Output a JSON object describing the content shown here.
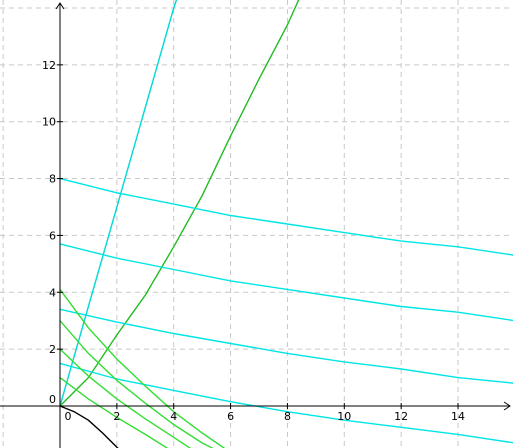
{
  "chart_data": {
    "type": "line",
    "title": "",
    "xlabel": "",
    "ylabel": "",
    "xlim": [
      -2,
      16
    ],
    "ylim": [
      -1.5,
      14.2
    ],
    "grid": true,
    "x_ticks": [
      {
        "value": 0,
        "label": "0"
      },
      {
        "value": 2,
        "label": "2"
      },
      {
        "value": 4,
        "label": "4"
      },
      {
        "value": 6,
        "label": "6"
      },
      {
        "value": 8,
        "label": "8"
      },
      {
        "value": 10,
        "label": "10"
      },
      {
        "value": 12,
        "label": "12"
      },
      {
        "value": 14,
        "label": "14"
      }
    ],
    "y_ticks": [
      {
        "value": 0,
        "label": "0"
      },
      {
        "value": 2,
        "label": "2"
      },
      {
        "value": 4,
        "label": "4"
      },
      {
        "value": 6,
        "label": "6"
      },
      {
        "value": 8,
        "label": "8"
      },
      {
        "value": 10,
        "label": "10"
      },
      {
        "value": 12,
        "label": "12"
      }
    ],
    "series": [
      {
        "color": "#00d8d8",
        "points": [
          [
            0,
            0
          ],
          [
            1,
            3.5
          ],
          [
            2,
            7.0
          ],
          [
            3,
            10.5
          ],
          [
            3.4,
            11.9
          ],
          [
            4,
            14.0
          ],
          [
            4.1,
            14.3
          ]
        ]
      },
      {
        "color": "#22bb22",
        "points": [
          [
            0,
            0
          ],
          [
            1,
            1.0
          ],
          [
            2,
            2.5
          ],
          [
            3,
            3.9
          ],
          [
            4,
            5.6
          ],
          [
            5,
            7.4
          ],
          [
            6,
            9.5
          ],
          [
            7,
            11.5
          ],
          [
            8,
            13.4
          ],
          [
            8.4,
            14.3
          ]
        ]
      },
      {
        "color": "#00e5e5",
        "points": [
          [
            0,
            8.0
          ],
          [
            2,
            7.5
          ],
          [
            4,
            7.1
          ],
          [
            6,
            6.7
          ],
          [
            8,
            6.4
          ],
          [
            10,
            6.1
          ],
          [
            12,
            5.8
          ],
          [
            14,
            5.6
          ],
          [
            16,
            5.3
          ]
        ]
      },
      {
        "color": "#00e5e5",
        "points": [
          [
            0,
            5.7
          ],
          [
            2,
            5.2
          ],
          [
            4,
            4.8
          ],
          [
            6,
            4.4
          ],
          [
            8,
            4.1
          ],
          [
            10,
            3.8
          ],
          [
            12,
            3.5
          ],
          [
            14,
            3.3
          ],
          [
            16,
            3.0
          ]
        ]
      },
      {
        "color": "#00e5e5",
        "points": [
          [
            0,
            3.4
          ],
          [
            2,
            2.95
          ],
          [
            4,
            2.55
          ],
          [
            6,
            2.2
          ],
          [
            8,
            1.85
          ],
          [
            10,
            1.55
          ],
          [
            12,
            1.3
          ],
          [
            14,
            1.0
          ],
          [
            16,
            0.8
          ]
        ]
      },
      {
        "color": "#00e5e5",
        "points": [
          [
            0,
            1.5
          ],
          [
            2,
            0.95
          ],
          [
            4,
            0.55
          ],
          [
            6,
            0.15
          ],
          [
            8,
            -0.2
          ],
          [
            10,
            -0.5
          ],
          [
            12,
            -0.75
          ],
          [
            14,
            -1.0
          ],
          [
            16,
            -1.3
          ]
        ]
      },
      {
        "color": "#33dd33",
        "points": [
          [
            0,
            4.1
          ],
          [
            1,
            2.75
          ],
          [
            2,
            1.65
          ],
          [
            3,
            0.7
          ],
          [
            4,
            -0.2
          ],
          [
            5,
            -0.95
          ],
          [
            5.8,
            -1.5
          ]
        ]
      },
      {
        "color": "#33dd33",
        "points": [
          [
            0,
            3.0
          ],
          [
            1,
            1.85
          ],
          [
            2,
            0.9
          ],
          [
            3,
            0.1
          ],
          [
            4,
            -0.65
          ],
          [
            5,
            -1.3
          ],
          [
            5.4,
            -1.5
          ]
        ]
      },
      {
        "color": "#33dd33",
        "points": [
          [
            0,
            2.0
          ],
          [
            1,
            1.05
          ],
          [
            2,
            0.25
          ],
          [
            3,
            -0.45
          ],
          [
            4,
            -1.1
          ],
          [
            4.6,
            -1.5
          ]
        ]
      },
      {
        "color": "#33dd33",
        "points": [
          [
            0,
            1.0
          ],
          [
            1,
            0.25
          ],
          [
            2,
            -0.4
          ],
          [
            3,
            -1.0
          ],
          [
            3.8,
            -1.5
          ]
        ]
      },
      {
        "color": "#000000",
        "points": [
          [
            0,
            0
          ],
          [
            0.5,
            -0.2
          ],
          [
            1,
            -0.5
          ],
          [
            1.5,
            -0.95
          ],
          [
            2,
            -1.45
          ],
          [
            2.1,
            -1.55
          ]
        ]
      }
    ]
  }
}
